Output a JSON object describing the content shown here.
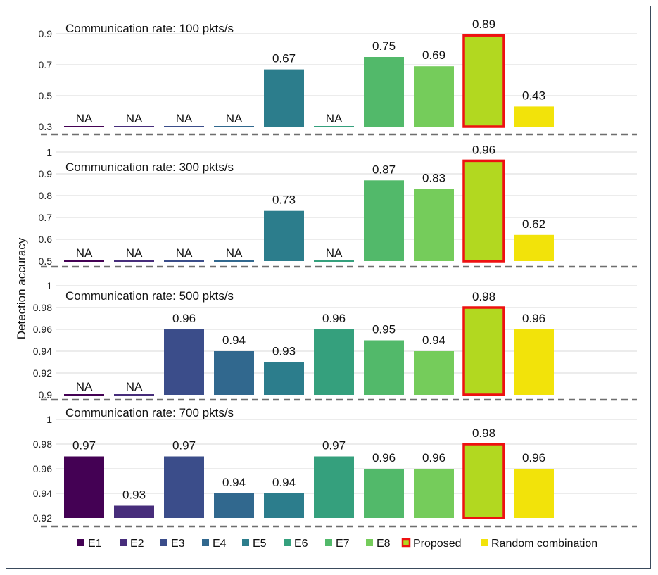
{
  "chart_data": {
    "type": "bar",
    "ylabel": "Detection accuracy",
    "categories": [
      "E1",
      "E2",
      "E3",
      "E4",
      "E5",
      "E6",
      "E7",
      "E8",
      "Proposed",
      "Random combination"
    ],
    "colors": [
      "#440154",
      "#472d7b",
      "#3b4d8a",
      "#31688e",
      "#2c7d8c",
      "#35a07d",
      "#52b96a",
      "#75cc5b",
      "#b2d820",
      "#f2e30a"
    ],
    "proposed_border": "#ee1111",
    "na_label": "NA",
    "panels": [
      {
        "title": "Communication rate: 100 pkts/s",
        "ylim": [
          0.3,
          0.9
        ],
        "ticks": [
          "0.3",
          "0.5",
          "0.7",
          "0.9"
        ],
        "tick_values": [
          0.3,
          0.5,
          0.7,
          0.9
        ],
        "values": [
          null,
          "NA",
          "NA",
          "NA",
          "NA",
          0.67,
          "NA",
          0.75,
          0.69,
          0.89,
          0.43
        ],
        "labels": [
          "",
          "NA",
          "NA",
          "NA",
          "NA",
          "0.67",
          "NA",
          "0.75",
          "0.69",
          "0.89",
          "0.43"
        ]
      },
      {
        "title": "Communication rate: 300 pkts/s",
        "ylim": [
          0.5,
          1.0
        ],
        "ticks": [
          "0.5",
          "0.6",
          "0.7",
          "0.8",
          "0.9",
          "1"
        ],
        "tick_values": [
          0.5,
          0.6,
          0.7,
          0.8,
          0.9,
          1.0
        ],
        "values": [
          null,
          "NA",
          "NA",
          "NA",
          "NA",
          0.73,
          "NA",
          0.87,
          0.83,
          0.96,
          0.62
        ],
        "labels": [
          "",
          "NA",
          "NA",
          "NA",
          "NA",
          "0.73",
          "NA",
          "0.87",
          "0.83",
          "0.96",
          "0.62"
        ]
      },
      {
        "title": "Communication rate: 500 pkts/s",
        "ylim": [
          0.9,
          1.0
        ],
        "ticks": [
          "0.9",
          "0.92",
          "0.94",
          "0.96",
          "0.98",
          "1"
        ],
        "tick_values": [
          0.9,
          0.92,
          0.94,
          0.96,
          0.98,
          1.0
        ],
        "values": [
          null,
          "NA",
          "NA",
          0.96,
          0.94,
          0.93,
          0.96,
          0.95,
          0.94,
          0.98,
          0.96
        ],
        "labels": [
          "",
          "NA",
          "NA",
          "0.96",
          "0.94",
          "0.93",
          "0.96",
          "0.95",
          "0.94",
          "0.98",
          "0.96"
        ]
      },
      {
        "title": "Communication rate: 700 pkts/s",
        "ylim": [
          0.92,
          1.0
        ],
        "ticks": [
          "0.92",
          "0.94",
          "0.96",
          "0.98",
          "1"
        ],
        "tick_values": [
          0.92,
          0.94,
          0.96,
          0.98,
          1.0
        ],
        "values": [
          null,
          0.97,
          0.93,
          0.97,
          0.94,
          0.94,
          0.97,
          0.96,
          0.96,
          0.98,
          0.96
        ],
        "labels": [
          "",
          "0.97",
          "0.93",
          "0.97",
          "0.94",
          "0.94",
          "0.97",
          "0.96",
          "0.96",
          "0.98",
          "0.96"
        ]
      }
    ],
    "legend": [
      "E1",
      "E2",
      "E3",
      "E4",
      "E5",
      "E6",
      "E7",
      "E8",
      "Proposed",
      "Random combination"
    ],
    "legend_position": "bottom"
  }
}
